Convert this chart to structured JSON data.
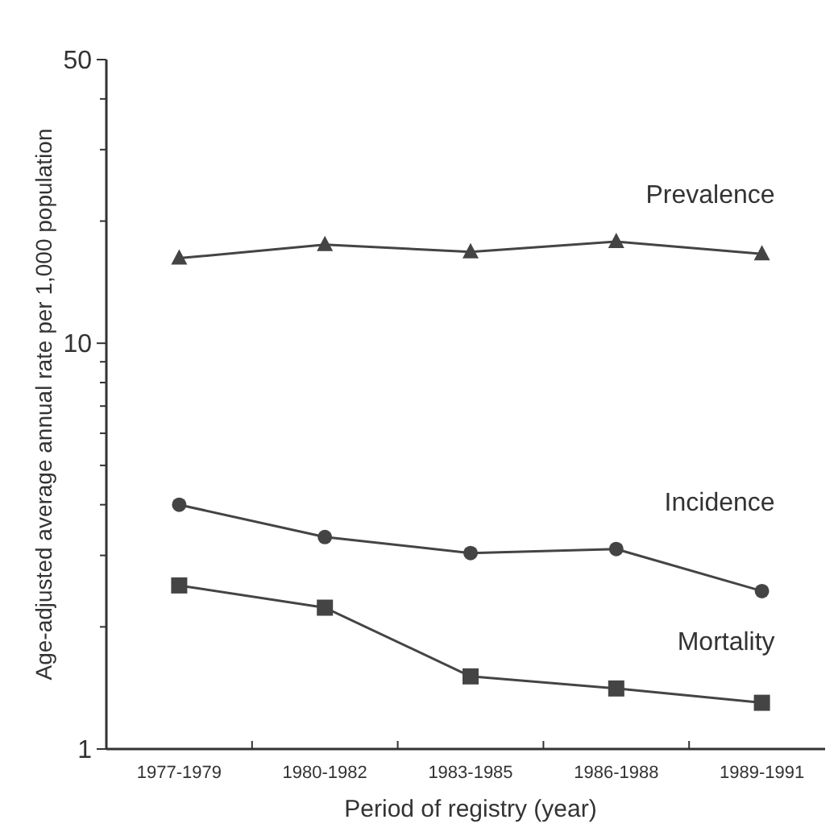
{
  "chart_data": {
    "type": "line",
    "xlabel": "Period of registry (year)",
    "ylabel": "Age-adjusted average annual rate per 1,000 population",
    "categories": [
      "1977-1979",
      "1980-1982",
      "1983-1985",
      "1986-1988",
      "1989-1991"
    ],
    "series": [
      {
        "name": "Prevalence",
        "color": "#444444",
        "marker": "triangle",
        "values": [
          16.2,
          17.5,
          16.8,
          17.8,
          16.6
        ]
      },
      {
        "name": "Incidence",
        "color": "#444444",
        "marker": "circle",
        "values": [
          4.0,
          3.33,
          3.04,
          3.11,
          2.45
        ]
      },
      {
        "name": "Mortality",
        "color": "#444444",
        "marker": "square",
        "values": [
          2.53,
          2.23,
          1.51,
          1.41,
          1.3
        ]
      }
    ],
    "log": true,
    "ylim": [
      1,
      50
    ],
    "yticks": [
      1,
      {
        "value": 2,
        "label": null
      },
      {
        "value": 3,
        "label": null
      },
      {
        "value": 4,
        "label": null
      },
      {
        "value": 5,
        "label": null
      },
      {
        "value": 6,
        "label": null
      },
      {
        "value": 7,
        "label": null
      },
      {
        "value": 8,
        "label": null
      },
      {
        "value": 9,
        "label": null
      },
      10,
      {
        "value": 20,
        "label": null
      },
      {
        "value": 30,
        "label": null
      },
      {
        "value": 40,
        "label": null
      },
      50
    ],
    "grid": false,
    "line_style": "solid"
  }
}
